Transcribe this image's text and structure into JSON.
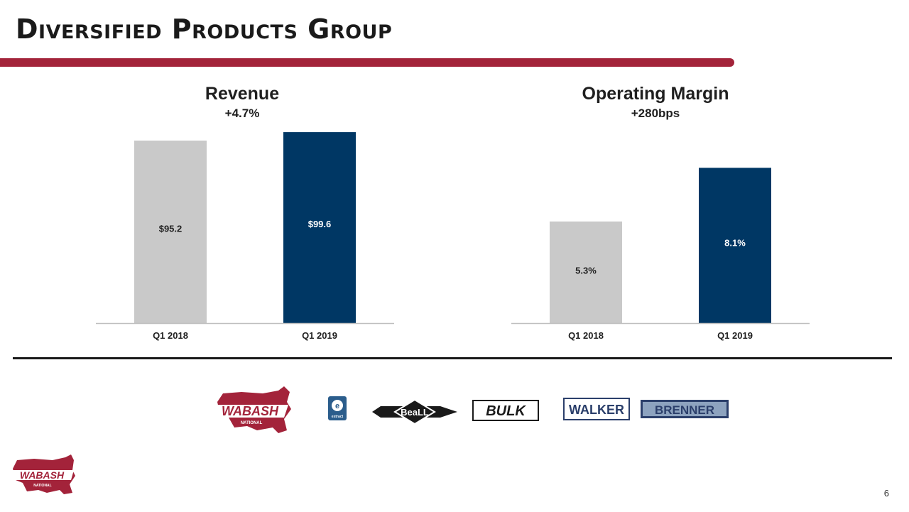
{
  "header": {
    "title": "Diversified Products Group"
  },
  "colors": {
    "accent": "#a3233a",
    "q1_2018": "#c9c9c9",
    "q1_2019": "#003764",
    "text": "#1f1f1f",
    "axis": "#bfbfbf"
  },
  "chart_data": [
    {
      "type": "bar",
      "title": "Revenue",
      "subtitle": "+4.7%",
      "categories": [
        "Q1 2018",
        "Q1 2019"
      ],
      "values": [
        95.2,
        99.6
      ],
      "value_labels": [
        "$95.2",
        "$99.6"
      ],
      "ylim": [
        0,
        100
      ],
      "grid": false,
      "legend": "none"
    },
    {
      "type": "bar",
      "title": "Operating Margin",
      "subtitle": "+280bps",
      "categories": [
        "Q1 2018",
        "Q1 2019"
      ],
      "values": [
        5.3,
        8.1
      ],
      "value_labels": [
        "5.3%",
        "8.1%"
      ],
      "ylim": [
        0,
        10
      ],
      "grid": false,
      "legend": "none"
    }
  ],
  "logos": {
    "wabash": "WABASH",
    "wabash_sub": "NATIONAL",
    "extract": "e",
    "extract_sub": "extract",
    "beall": "BeaLL",
    "bulk": "BULK",
    "walker": "WALKER",
    "brenner": "BRENNER"
  },
  "footer": {
    "page_number": "6",
    "logo_text": "WABASH",
    "logo_sub": "NATIONAL"
  }
}
